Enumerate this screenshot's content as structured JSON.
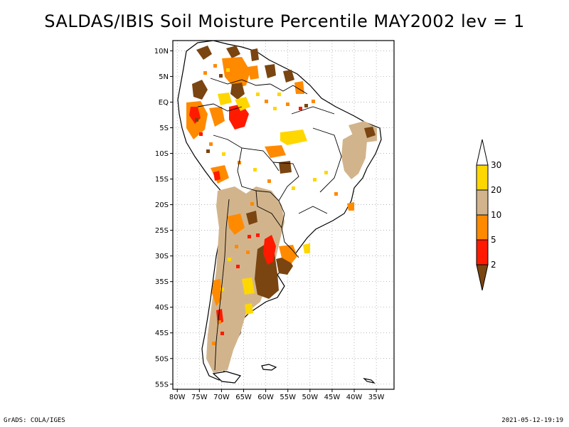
{
  "title": "SALDAS/IBIS Soil Moisture Percentile MAY2002 lev = 1",
  "footer": {
    "left": "GrADS: COLA/IGES",
    "right": "2021-05-12-19:19"
  },
  "map": {
    "lon_range": [
      -81,
      -31
    ],
    "lat_range": [
      -56,
      12
    ],
    "x_ticks": [
      "80W",
      "75W",
      "70W",
      "65W",
      "60W",
      "55W",
      "50W",
      "45W",
      "40W",
      "35W"
    ],
    "y_ticks": [
      "10N",
      "5N",
      "EQ",
      "5S",
      "10S",
      "15S",
      "20S",
      "25S",
      "30S",
      "35S",
      "40S",
      "45S",
      "50S",
      "55S"
    ],
    "colors": {
      "c2": "#7a4510",
      "c5": "#ff1a00",
      "c10": "#ff8a00",
      "c20": "#d2b48c",
      "c30": "#ffd700",
      "land": "#ffffff",
      "boundary": "#000000",
      "grid": "#9a9a9a"
    }
  },
  "colorbar": {
    "labels": [
      "30",
      "20",
      "10",
      "5",
      "2"
    ],
    "colors": [
      "#ffffff",
      "#ffd700",
      "#d2b48c",
      "#ff8a00",
      "#ff1a00",
      "#7a4510"
    ]
  }
}
